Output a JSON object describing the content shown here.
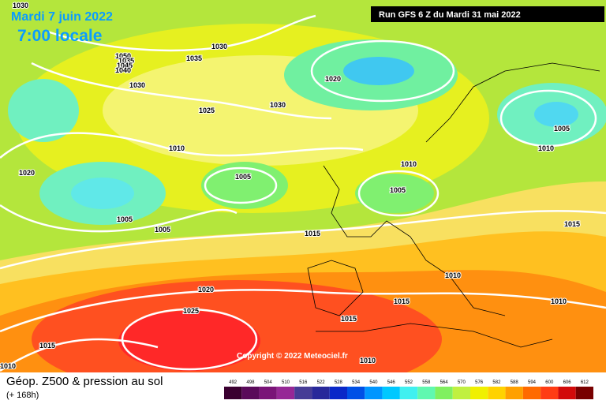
{
  "header": {
    "title": "Mardi 7 juin 2022",
    "subtitle": "7:00 locale",
    "run": "Run GFS 6 Z du Mardi 31 mai 2022"
  },
  "isobar_labels": [
    1030,
    1050,
    1035,
    1045,
    1040,
    1030,
    1035,
    1030,
    1020,
    1025,
    1030,
    1010,
    1020,
    1005,
    1010,
    1005,
    1005,
    1010,
    1005,
    1005,
    1015,
    1015,
    1010,
    1020,
    1015,
    1010,
    1025,
    1015,
    1015,
    1010,
    1010
  ],
  "copyright": "Copyright © 2022 Meteociel.fr",
  "footer": {
    "title": "Géop. Z500 & pression au sol",
    "lead_time": "(+ 168h)"
  },
  "legend": {
    "values": [
      492,
      498,
      504,
      510,
      516,
      522,
      528,
      534,
      540,
      546,
      552,
      558,
      564,
      570,
      576,
      582,
      588,
      594,
      600,
      606,
      612
    ],
    "colors": [
      "#3a0030",
      "#5a0a5a",
      "#7a1478",
      "#962896",
      "#463c96",
      "#28289a",
      "#0a28c8",
      "#0050e6",
      "#0096ff",
      "#00c8ff",
      "#40f0f0",
      "#60f8b0",
      "#80f060",
      "#c0f040",
      "#f0f000",
      "#ffd200",
      "#ffa000",
      "#ff6a00",
      "#ff3c14",
      "#d20a0a",
      "#780000"
    ]
  }
}
